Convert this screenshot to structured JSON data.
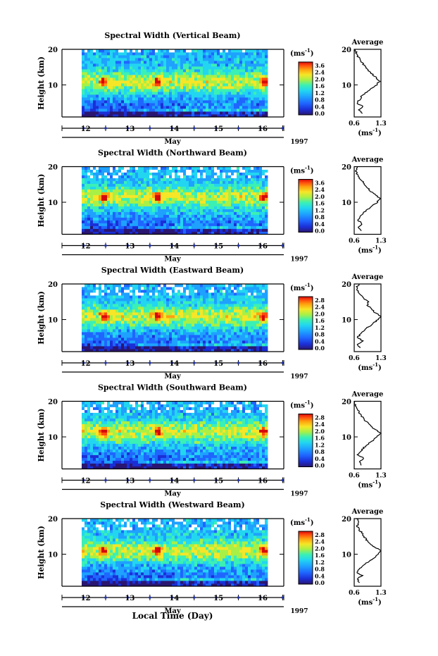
{
  "figure": {
    "xlabel": "Local Time (Day)",
    "month": "May",
    "year": "1997",
    "height_label": "Height (km)",
    "unit_label": "(ms",
    "unit_exp": "-1",
    "unit_close": ")",
    "average_title": "Average"
  },
  "colors": {
    "scale": [
      "#2a1670",
      "#1b2fd6",
      "#1f66ff",
      "#1ea1ff",
      "#22d6f0",
      "#3bf0b4",
      "#a8f046",
      "#f6e627",
      "#ffa10f",
      "#ff4a0d",
      "#d40a0a"
    ]
  },
  "chart_data": [
    {
      "type": "heatmap",
      "title": "Spectral Width (Vertical Beam)",
      "ylabel": "Height (km)",
      "xlabel": "May",
      "x_ticks": [
        "12",
        "13",
        "14",
        "15",
        "16"
      ],
      "y_ticks": [
        "10",
        "20"
      ],
      "ylim": [
        1,
        20
      ],
      "colorbar_ticks": [
        "3.6",
        "2.4",
        "2.0",
        "1.6",
        "1.2",
        "0.8",
        "0.4",
        "0.0"
      ],
      "avg_title": "Average",
      "avg_x_ticks": [
        "0.6",
        "1.3"
      ],
      "avg_xlabel": "(ms",
      "avg_profile": [
        [
          0.8,
          2
        ],
        [
          0.72,
          3
        ],
        [
          0.82,
          4
        ],
        [
          0.66,
          5
        ],
        [
          0.75,
          6
        ],
        [
          0.8,
          7
        ],
        [
          0.92,
          8
        ],
        [
          1.05,
          9
        ],
        [
          1.18,
          10
        ],
        [
          1.26,
          11
        ],
        [
          1.18,
          12
        ],
        [
          1.08,
          13
        ],
        [
          0.98,
          14
        ],
        [
          0.9,
          15
        ],
        [
          0.82,
          16
        ],
        [
          0.75,
          17
        ],
        [
          0.7,
          18
        ],
        [
          0.66,
          19
        ],
        [
          0.62,
          20
        ]
      ]
    },
    {
      "type": "heatmap",
      "title": "Spectral Width (Northward Beam)",
      "ylabel": "Height (km)",
      "xlabel": "May",
      "x_ticks": [
        "12",
        "13",
        "14",
        "15",
        "16"
      ],
      "y_ticks": [
        "10",
        "20"
      ],
      "ylim": [
        1,
        20
      ],
      "colorbar_ticks": [
        "3.6",
        "2.4",
        "2.0",
        "1.6",
        "1.2",
        "0.8",
        "0.4",
        "0.0"
      ],
      "avg_title": "Average",
      "avg_x_ticks": [
        "0.6",
        "1.3"
      ],
      "avg_xlabel": "(ms",
      "avg_profile": [
        [
          0.78,
          2
        ],
        [
          0.7,
          3
        ],
        [
          0.8,
          4
        ],
        [
          0.7,
          5
        ],
        [
          0.76,
          6
        ],
        [
          0.84,
          7
        ],
        [
          0.95,
          8
        ],
        [
          1.08,
          9
        ],
        [
          1.2,
          10
        ],
        [
          1.28,
          11
        ],
        [
          1.16,
          12
        ],
        [
          1.04,
          13
        ],
        [
          0.96,
          14
        ],
        [
          0.88,
          15
        ],
        [
          0.8,
          16
        ],
        [
          0.72,
          17
        ],
        [
          0.66,
          18
        ],
        [
          0.64,
          19
        ],
        [
          0.68,
          20
        ]
      ]
    },
    {
      "type": "heatmap",
      "title": "Spectral Width (Eastward Beam)",
      "ylabel": "Height (km)",
      "xlabel": "May",
      "x_ticks": [
        "12",
        "13",
        "14",
        "15",
        "16"
      ],
      "y_ticks": [
        "10",
        "20"
      ],
      "ylim": [
        1,
        20
      ],
      "colorbar_ticks": [
        "2.8",
        "2.4",
        "2.0",
        "1.6",
        "1.2",
        "0.8",
        "0.4",
        "0.0"
      ],
      "avg_title": "Average",
      "avg_x_ticks": [
        "0.6",
        "1.3"
      ],
      "avg_xlabel": "(ms",
      "avg_profile": [
        [
          0.76,
          2
        ],
        [
          0.7,
          3
        ],
        [
          0.82,
          4
        ],
        [
          0.68,
          5
        ],
        [
          0.78,
          6
        ],
        [
          0.86,
          7
        ],
        [
          0.98,
          8
        ],
        [
          1.1,
          9
        ],
        [
          1.22,
          10
        ],
        [
          1.3,
          11
        ],
        [
          1.14,
          12
        ],
        [
          1.06,
          13
        ],
        [
          0.94,
          14
        ],
        [
          0.98,
          15
        ],
        [
          0.84,
          16
        ],
        [
          0.78,
          17
        ],
        [
          0.7,
          18
        ],
        [
          0.66,
          19
        ],
        [
          0.72,
          20
        ]
      ]
    },
    {
      "type": "heatmap",
      "title": "Spectral Width (Southward Beam)",
      "ylabel": "Height (km)",
      "xlabel": "May",
      "x_ticks": [
        "12",
        "13",
        "14",
        "15",
        "16"
      ],
      "y_ticks": [
        "10",
        "20"
      ],
      "ylim": [
        1,
        20
      ],
      "colorbar_ticks": [
        "2.8",
        "2.4",
        "2.0",
        "1.6",
        "1.2",
        "0.8",
        "0.4",
        "0.0"
      ],
      "avg_title": "Average",
      "avg_x_ticks": [
        "0.6",
        "1.3"
      ],
      "avg_xlabel": "(ms",
      "avg_profile": [
        [
          0.8,
          2
        ],
        [
          0.74,
          3
        ],
        [
          0.84,
          4
        ],
        [
          0.7,
          5
        ],
        [
          0.78,
          6
        ],
        [
          0.86,
          7
        ],
        [
          0.96,
          8
        ],
        [
          1.08,
          9
        ],
        [
          1.2,
          10
        ],
        [
          1.28,
          11
        ],
        [
          1.16,
          12
        ],
        [
          1.04,
          13
        ],
        [
          0.94,
          14
        ],
        [
          0.86,
          15
        ],
        [
          0.78,
          16
        ],
        [
          0.72,
          17
        ],
        [
          0.66,
          18
        ],
        [
          0.62,
          19
        ],
        [
          0.6,
          20
        ]
      ]
    },
    {
      "type": "heatmap",
      "title": "Spectral Width (Westward Beam)",
      "ylabel": "Height (km)",
      "xlabel": "May",
      "x_ticks": [
        "12",
        "13",
        "14",
        "15",
        "16"
      ],
      "y_ticks": [
        "10",
        "20"
      ],
      "ylim": [
        1,
        20
      ],
      "colorbar_ticks": [
        "2.8",
        "2.4",
        "2.0",
        "1.6",
        "1.2",
        "0.8",
        "0.4",
        "0.0"
      ],
      "avg_title": "Average",
      "avg_x_ticks": [
        "0.6",
        "1.3"
      ],
      "avg_xlabel": "(ms",
      "avg_profile": [
        [
          0.74,
          2
        ],
        [
          0.68,
          3
        ],
        [
          0.8,
          4
        ],
        [
          0.66,
          5
        ],
        [
          0.76,
          6
        ],
        [
          0.86,
          7
        ],
        [
          0.98,
          8
        ],
        [
          1.12,
          9
        ],
        [
          1.24,
          10
        ],
        [
          1.3,
          11
        ],
        [
          1.14,
          12
        ],
        [
          1.02,
          13
        ],
        [
          0.92,
          14
        ],
        [
          0.86,
          15
        ],
        [
          0.8,
          16
        ],
        [
          0.72,
          17
        ],
        [
          0.68,
          18
        ],
        [
          0.72,
          19
        ],
        [
          0.66,
          20
        ]
      ]
    }
  ]
}
